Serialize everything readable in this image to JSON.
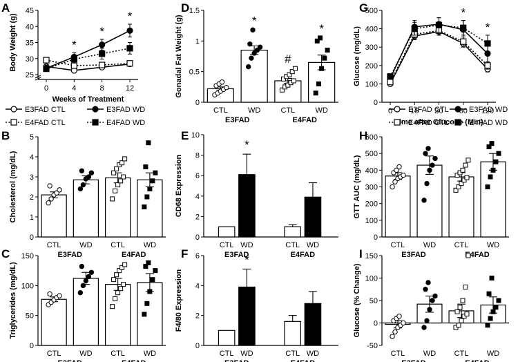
{
  "figure": {
    "panel_letters": [
      "A",
      "B",
      "C",
      "D",
      "E",
      "F",
      "G",
      "H",
      "I"
    ],
    "group_labels": [
      "E3FAD",
      "E4FAD"
    ],
    "legend_time": [
      "E3FAD CTL",
      "E3FAD WD",
      "E4FAD CTL",
      "E4FAD WD"
    ]
  },
  "chart_data": [
    {
      "panel": "A",
      "type": "line",
      "ylabel": "Body Weight (g)",
      "xlabel": "Weeks of Treatment",
      "x": [
        0,
        4,
        8,
        12
      ],
      "ylim": [
        25,
        45
      ],
      "yticks": [
        25,
        30,
        35,
        40,
        45
      ],
      "axis_break": true,
      "series": [
        {
          "name": "E3FAD CTL",
          "values": [
            27.5,
            26.3,
            27.3,
            28.3
          ],
          "err": [
            0.6,
            0.5,
            0.6,
            0.7
          ],
          "marker": "circle-open",
          "line": "solid"
        },
        {
          "name": "E3FAD WD",
          "values": [
            27.0,
            30.5,
            34.3,
            38.7
          ],
          "err": [
            1.0,
            1.3,
            1.7,
            2.0
          ],
          "marker": "circle-filled",
          "line": "solid"
        },
        {
          "name": "E4FAD CTL",
          "values": [
            29.5,
            27.8,
            28.0,
            28.5
          ],
          "err": [
            0.8,
            0.6,
            0.6,
            0.8
          ],
          "marker": "square-open",
          "line": "dotted"
        },
        {
          "name": "E4FAD WD",
          "values": [
            26.8,
            29.8,
            31.5,
            33.2
          ],
          "err": [
            0.8,
            1.2,
            1.7,
            1.8
          ],
          "marker": "square-filled",
          "line": "dotted"
        }
      ],
      "annotations": [
        {
          "x": 4,
          "text": "*"
        },
        {
          "x": 8,
          "text": "*"
        },
        {
          "x": 12,
          "text": "*"
        }
      ]
    },
    {
      "panel": "B",
      "type": "bar",
      "ylabel": "Cholesterol (mg/dL)",
      "ylim": [
        0,
        5
      ],
      "yticks": [
        0,
        1,
        2,
        3,
        4,
        5
      ],
      "categories": [
        "CTL",
        "WD",
        "CTL",
        "WD"
      ],
      "values": [
        2.1,
        2.85,
        2.95,
        2.85
      ],
      "err": [
        0.15,
        0.2,
        0.25,
        0.35
      ],
      "points": [
        [
          1.7,
          1.9,
          2.1,
          2.2,
          2.35,
          2.55
        ],
        [
          2.4,
          2.6,
          2.9,
          3.0,
          3.2,
          3.3
        ],
        [
          1.9,
          2.3,
          2.6,
          2.8,
          3.0,
          3.2,
          3.4,
          3.6,
          3.7,
          3.9
        ],
        [
          1.5,
          2.0,
          2.4,
          2.8,
          3.2,
          3.5,
          4.7
        ]
      ]
    },
    {
      "panel": "C",
      "type": "bar",
      "ylabel": "Triglycerides (mg/dL)",
      "ylim": [
        0,
        150
      ],
      "yticks": [
        0,
        50,
        100,
        150
      ],
      "categories": [
        "CTL",
        "WD",
        "CTL",
        "WD"
      ],
      "values": [
        77,
        112,
        102,
        105
      ],
      "err": [
        4,
        10,
        10,
        15
      ],
      "points": [
        [
          68,
          72,
          76,
          80,
          83,
          86
        ],
        [
          88,
          100,
          108,
          115,
          122,
          132
        ],
        [
          65,
          78,
          88,
          95,
          102,
          110,
          118,
          125,
          130,
          135
        ],
        [
          52,
          70,
          90,
          110,
          125,
          132,
          138
        ]
      ]
    },
    {
      "panel": "D",
      "type": "bar",
      "ylabel": "Gonadal Fat Weight (g)",
      "ylim": [
        0,
        1.5
      ],
      "yticks": [
        0,
        0.5,
        1.0,
        1.5
      ],
      "categories": [
        "CTL",
        "WD",
        "CTL",
        "WD"
      ],
      "values": [
        0.22,
        0.85,
        0.35,
        0.65
      ],
      "err": [
        0.03,
        0.07,
        0.04,
        0.12
      ],
      "points": [
        [
          0.12,
          0.15,
          0.18,
          0.21,
          0.24,
          0.27,
          0.3,
          0.33
        ],
        [
          0.58,
          0.72,
          0.8,
          0.85,
          0.9,
          0.95,
          1.18
        ],
        [
          0.2,
          0.25,
          0.28,
          0.32,
          0.35,
          0.38,
          0.42,
          0.45,
          0.5,
          0.55
        ],
        [
          0.15,
          0.3,
          0.55,
          0.72,
          0.85,
          1.0,
          1.05
        ]
      ],
      "annotations": [
        "",
        "*",
        "#",
        "*"
      ]
    },
    {
      "panel": "E",
      "type": "bar",
      "ylabel": "CD68 Expression",
      "ylim": [
        0,
        10
      ],
      "yticks": [
        0,
        2,
        4,
        6,
        8,
        10
      ],
      "categories": [
        "CTL",
        "WD",
        "CTL",
        "WD"
      ],
      "values": [
        1.0,
        6.1,
        1.0,
        3.9
      ],
      "err": [
        0,
        2.0,
        0.2,
        1.4
      ],
      "annotations": [
        "",
        "*",
        "",
        ""
      ]
    },
    {
      "panel": "F",
      "type": "bar",
      "ylabel": "F4/80 Expression",
      "ylim": [
        0,
        6
      ],
      "yticks": [
        0,
        2,
        4,
        6
      ],
      "categories": [
        "CTL",
        "WD",
        "CTL",
        "WD"
      ],
      "values": [
        1.0,
        3.9,
        1.6,
        2.8
      ],
      "err": [
        0,
        1.2,
        0.4,
        0.8
      ],
      "annotations": [
        "",
        "*",
        "",
        ""
      ]
    },
    {
      "panel": "G",
      "type": "line",
      "ylabel": "Glucose (mg/dL)",
      "xlabel": "Time after Glucose (Min)",
      "x": [
        0,
        15,
        30,
        60,
        120
      ],
      "ylim": [
        0,
        500
      ],
      "yticks": [
        0,
        100,
        200,
        300,
        400,
        500
      ],
      "series": [
        {
          "name": "E3FAD CTL",
          "values": [
            100,
            360,
            385,
            320,
            180
          ],
          "err": [
            10,
            20,
            20,
            20,
            15
          ],
          "marker": "circle-open",
          "line": "solid"
        },
        {
          "name": "E3FAD WD",
          "values": [
            130,
            410,
            425,
            395,
            265
          ],
          "err": [
            15,
            35,
            35,
            50,
            45
          ],
          "marker": "circle-filled",
          "line": "solid"
        },
        {
          "name": "E4FAD CTL",
          "values": [
            110,
            370,
            390,
            330,
            200
          ],
          "err": [
            10,
            20,
            25,
            25,
            20
          ],
          "marker": "square-open",
          "line": "dotted"
        },
        {
          "name": "E4FAD WD",
          "values": [
            140,
            400,
            420,
            405,
            320
          ],
          "err": [
            15,
            35,
            40,
            40,
            45
          ],
          "marker": "square-filled",
          "line": "dotted"
        }
      ],
      "annotations": [
        {
          "x": 60,
          "text": "*"
        },
        {
          "x": 120,
          "text": "*"
        }
      ]
    },
    {
      "panel": "H",
      "type": "bar",
      "ylabel": "GTT AUC (mg/dL)",
      "ylim": [
        0,
        600
      ],
      "yticks": [
        0,
        100,
        200,
        300,
        400,
        500,
        600
      ],
      "categories": [
        "CTL",
        "WD",
        "CTL",
        "WD"
      ],
      "values": [
        365,
        430,
        360,
        450
      ],
      "err": [
        20,
        55,
        25,
        50
      ],
      "points": [
        [
          300,
          330,
          350,
          360,
          370,
          385,
          400,
          420
        ],
        [
          220,
          320,
          400,
          430,
          470,
          500,
          530
        ],
        [
          280,
          300,
          320,
          340,
          355,
          370,
          385,
          400,
          430,
          460
        ],
        [
          300,
          360,
          400,
          450,
          500,
          540,
          560
        ]
      ]
    },
    {
      "panel": "I",
      "type": "bar",
      "ylabel": "Glucose (% Change)",
      "ylim": [
        -50,
        150
      ],
      "yticks": [
        -50,
        0,
        50,
        100,
        150
      ],
      "categories": [
        "CTL",
        "WD",
        "CTL",
        "WD"
      ],
      "values": [
        -3,
        42,
        27,
        40
      ],
      "err": [
        8,
        18,
        15,
        18
      ],
      "points": [
        [
          -30,
          -20,
          -10,
          -5,
          0,
          5,
          10,
          15
        ],
        [
          -10,
          5,
          30,
          50,
          60,
          75,
          90
        ],
        [
          -10,
          -5,
          5,
          15,
          20,
          25,
          35,
          50,
          80,
          150
        ],
        [
          -5,
          10,
          25,
          35,
          50,
          65,
          100
        ]
      ]
    }
  ]
}
